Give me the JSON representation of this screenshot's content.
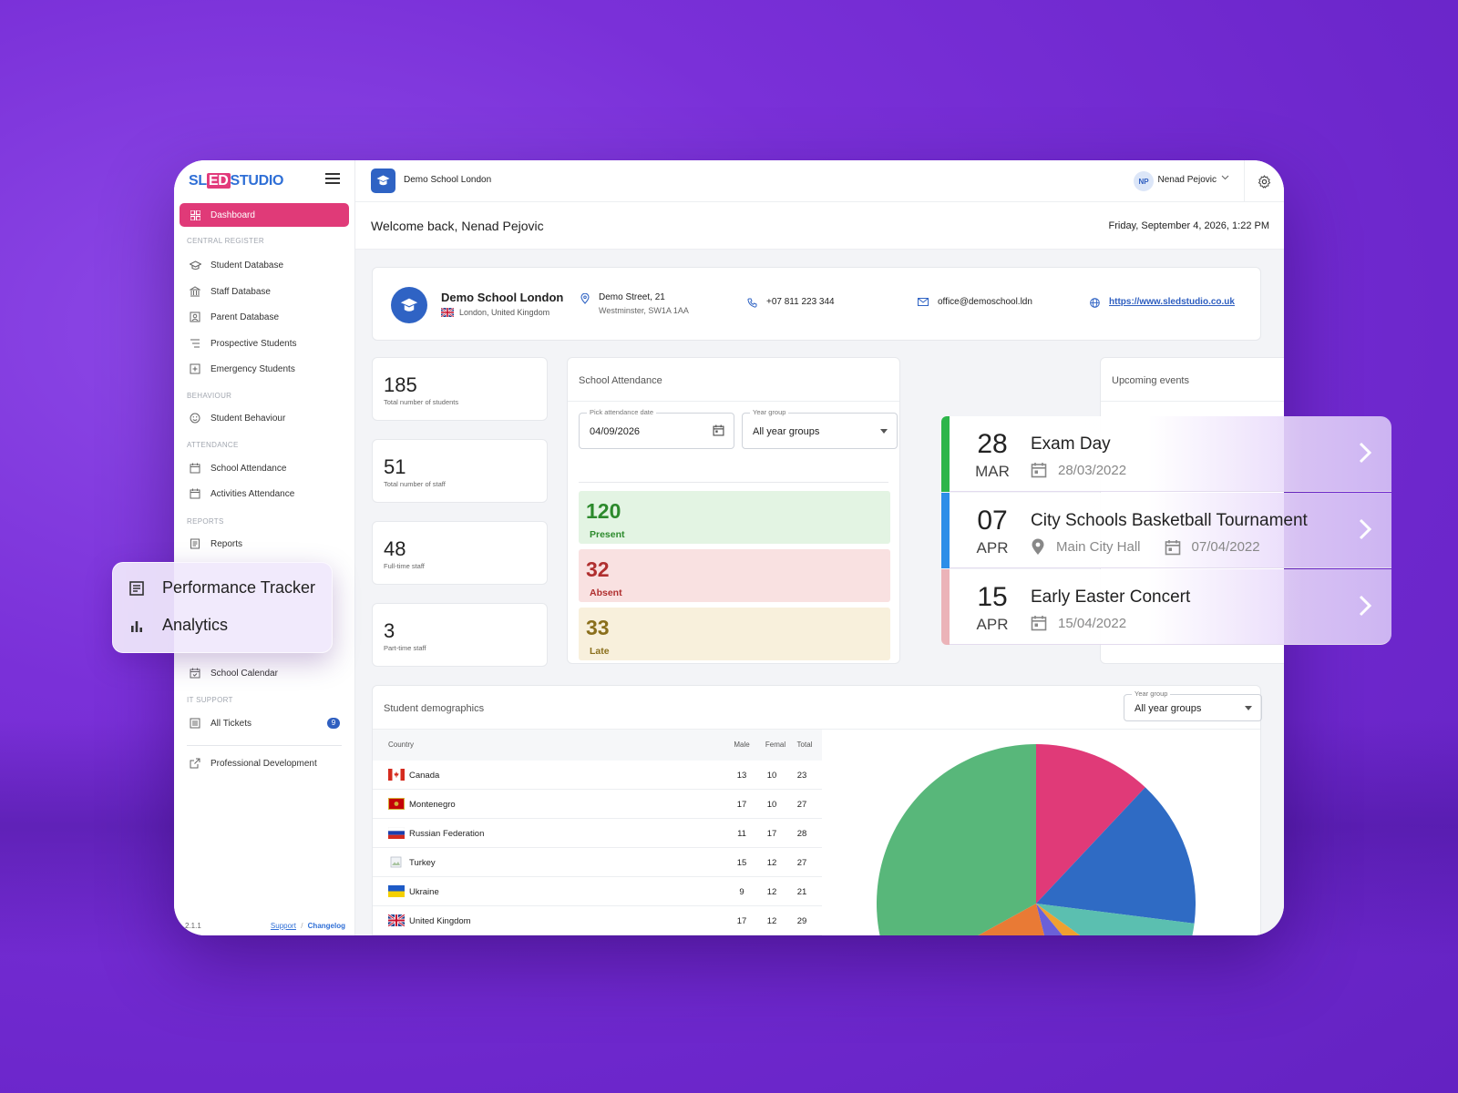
{
  "brand": {
    "part1": "SL",
    "part2": "ED",
    "part3": "STUDIO"
  },
  "sidebar": {
    "dashboard": "Dashboard",
    "sections": {
      "central_register": "CENTRAL REGISTER",
      "behaviour": "BEHAVIOUR",
      "attendance": "ATTENDANCE",
      "reports": "REPORTS",
      "it_support": "IT SUPPORT"
    },
    "items": {
      "student_database": "Student Database",
      "staff_database": "Staff Database",
      "parent_database": "Parent Database",
      "prospective_students": "Prospective Students",
      "emergency_students": "Emergency Students",
      "student_behaviour": "Student Behaviour",
      "school_attendance": "School Attendance",
      "activities_attendance": "Activities Attendance",
      "reports": "Reports",
      "school_calendar": "School Calendar",
      "all_tickets": "All Tickets",
      "professional_development": "Professional Development"
    },
    "tickets_badge": "9",
    "version": "2.1.1",
    "support": "Support",
    "separator": "/",
    "changelog": "Changelog"
  },
  "topbar": {
    "school": "Demo School London",
    "user_initials": "NP",
    "user_name": "Nenad Pejovic"
  },
  "welcome": {
    "text": "Welcome back, Nenad Pejovic",
    "datetime": "Friday, September 4, 2026, 1:22 PM"
  },
  "school": {
    "name": "Demo School London",
    "location": "London, United Kingdom",
    "street": "Demo Street, 21",
    "district": "Westminster, SW1A 1AA",
    "phone": "+07 811 223 344",
    "email": "office@demoschool.ldn",
    "website": "https://www.sledstudio.co.uk"
  },
  "stats": [
    {
      "value": "185",
      "label": "Total number of students"
    },
    {
      "value": "51",
      "label": "Total number of staff"
    },
    {
      "value": "48",
      "label": "Full-time staff"
    },
    {
      "value": "3",
      "label": "Part-time staff"
    }
  ],
  "attendance": {
    "title": "School Attendance",
    "date_label": "Pick attendance date",
    "date_value": "04/09/2026",
    "year_label": "Year group",
    "year_value": "All year groups",
    "present": {
      "value": "120",
      "label": "Present"
    },
    "absent": {
      "value": "32",
      "label": "Absent"
    },
    "late": {
      "value": "33",
      "label": "Late"
    }
  },
  "events": {
    "title": "Upcoming events",
    "items": [
      {
        "day": "28",
        "month": "MAR",
        "title": "Exam Day",
        "location": "",
        "date": "28/03/2022",
        "color": "#2db54a"
      },
      {
        "day": "07",
        "month": "APR",
        "title": "City Schools Basketball Tournament",
        "location": "Main City Hall",
        "date": "07/04/2022",
        "color": "#2d8ee8"
      },
      {
        "day": "15",
        "month": "APR",
        "title": "Early Easter Concert",
        "location": "",
        "date": "15/04/2022",
        "color": "#ebb3b8"
      }
    ]
  },
  "float_menu": {
    "performance": "Performance Tracker",
    "analytics": "Analytics"
  },
  "demographics": {
    "title": "Student demographics",
    "year_label": "Year group",
    "year_value": "All year groups",
    "columns": {
      "country": "Country",
      "male": "Male",
      "female": "Femal",
      "total": "Total"
    },
    "rows": [
      {
        "country": "Canada",
        "male": "13",
        "female": "10",
        "total": "23"
      },
      {
        "country": "Montenegro",
        "male": "17",
        "female": "10",
        "total": "27"
      },
      {
        "country": "Russian Federation",
        "male": "11",
        "female": "17",
        "total": "28"
      },
      {
        "country": "Turkey",
        "male": "15",
        "female": "12",
        "total": "27"
      },
      {
        "country": "Ukraine",
        "male": "9",
        "female": "12",
        "total": "21"
      },
      {
        "country": "United Kingdom",
        "male": "17",
        "female": "12",
        "total": "29"
      }
    ]
  },
  "chart_data": {
    "type": "pie",
    "slices": [
      {
        "color": "#e03a78",
        "value": 12
      },
      {
        "color": "#2f6bc4",
        "value": 15
      },
      {
        "color": "#5bbfb0",
        "value": 8
      },
      {
        "color": "#f0a030",
        "value": 4
      },
      {
        "color": "#6a60d8",
        "value": 7
      },
      {
        "color": "#e97a35",
        "value": 21
      },
      {
        "color": "#58b77a",
        "value": 33
      }
    ]
  }
}
